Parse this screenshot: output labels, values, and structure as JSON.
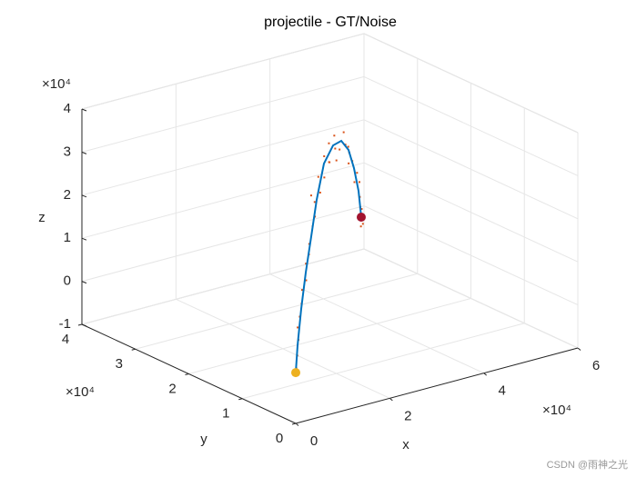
{
  "chart_data": {
    "type": "scatter3d",
    "title": "projectile - GT/Noise",
    "xlabel": "x",
    "ylabel": "y",
    "zlabel": "z",
    "xexponent": "×10⁴",
    "yexponent": "×10⁴",
    "zexponent": "×10⁴",
    "xlim": [
      0,
      60000
    ],
    "ylim": [
      0,
      40000
    ],
    "zlim": [
      -10000,
      40000
    ],
    "xticks": [
      0,
      {
        "value": 20000,
        "label": "2"
      },
      {
        "value": 40000,
        "label": "4"
      },
      {
        "value": 60000,
        "label": "6"
      }
    ],
    "yticks": [
      0,
      {
        "value": 10000,
        "label": "1"
      },
      {
        "value": 20000,
        "label": "2"
      },
      {
        "value": 30000,
        "label": "3"
      },
      {
        "value": 40000,
        "label": "4"
      }
    ],
    "zticks": [
      {
        "value": -10000,
        "label": "-1"
      },
      0,
      {
        "value": 10000,
        "label": "1"
      },
      {
        "value": 20000,
        "label": "2"
      },
      {
        "value": 30000,
        "label": "3"
      },
      {
        "value": 40000,
        "label": "4"
      }
    ],
    "grid": true,
    "series": [
      {
        "color": "#0072bd",
        "style": "line",
        "start_color": "#edb120",
        "end_color": "#a2142f",
        "x": [
          0,
          1220,
          3650,
          6700,
          10360,
          14010,
          18880,
          24970,
          30460,
          35330,
          38980,
          42030,
          43860
        ],
        "y": [
          0,
          730,
          2190,
          4020,
          6210,
          8410,
          11330,
          14980,
          18270,
          21200,
          23390,
          25220,
          26320
        ],
        "z": [
          1800,
          7360,
          14270,
          20760,
          26860,
          32970,
          38310,
          38650,
          36220,
          31010,
          24450,
          17240,
          9960
        ]
      },
      {
        "color": "#d95319",
        "style": "points",
        "x": [
          300,
          900,
          1600,
          2100,
          2900,
          4200,
          5100,
          6200,
          7400,
          8600,
          9700,
          11200,
          12500,
          13400,
          15200,
          16400,
          17900,
          19800,
          21400,
          23200,
          25900,
          27300,
          29100,
          31800,
          33200,
          34600,
          36400,
          37500,
          38200,
          40100,
          40800,
          41600,
          43000,
          42600,
          44500,
          43200,
          45100,
          24000,
          20500,
          14600
        ],
        "y": [
          150,
          500,
          900,
          1500,
          1800,
          2600,
          3300,
          3500,
          4600,
          5100,
          6000,
          6700,
          7400,
          8900,
          8800,
          10200,
          10400,
          12100,
          12500,
          14200,
          15400,
          16800,
          17400,
          19000,
          19900,
          20600,
          22000,
          22400,
          23700,
          23800,
          24900,
          24600,
          25900,
          25400,
          26800,
          25800,
          27100,
          13500,
          11800,
          9300
        ],
        "z": [
          2600,
          5200,
          8400,
          10800,
          12900,
          15100,
          17600,
          19400,
          22300,
          23800,
          25400,
          28600,
          30100,
          33900,
          34100,
          36600,
          35900,
          39300,
          37200,
          40100,
          37400,
          39200,
          35100,
          37400,
          33600,
          32300,
          29600,
          27100,
          25600,
          22800,
          19800,
          16300,
          18600,
          13200,
          11400,
          8300,
          7600,
          36300,
          37900,
          31800
        ]
      }
    ],
    "watermark": "CSDN @雨神之光"
  }
}
